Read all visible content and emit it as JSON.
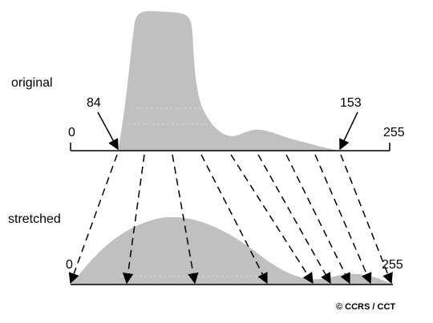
{
  "labels": {
    "original": "original",
    "stretched": "stretched",
    "orig_zero": "0",
    "orig_255": "255",
    "marker_low": "84",
    "marker_high": "153",
    "str_zero": "0",
    "str_255": "255",
    "credit": "© CCRS / CCT"
  },
  "colors": {
    "histogram_fill": "#c0c0c0",
    "line": "#000000",
    "grid": "#d8d8d8"
  }
}
